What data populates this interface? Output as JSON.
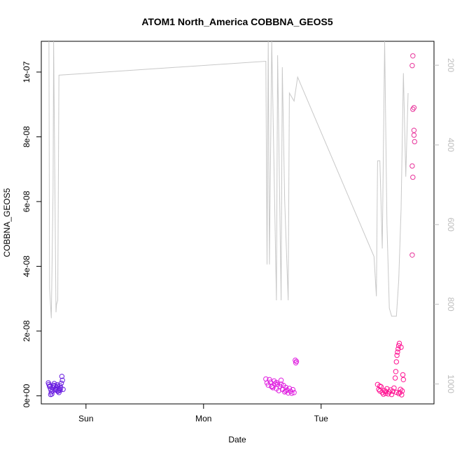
{
  "chart_data": {
    "type": "scatter",
    "title": "ATOM1 North_America COBBNA_GEOS5",
    "xlabel": "Date",
    "ylabel": "COBBNA_GEOS5",
    "x_tick_labels": [
      "Sun",
      "Mon",
      "Tue"
    ],
    "x_tick_values": [
      1,
      2,
      3
    ],
    "xlim": [
      0.62,
      3.96
    ],
    "ylim": [
      -2.5e-09,
      1.095e-07
    ],
    "y_tick_values": [
      0,
      2e-08,
      4e-08,
      6e-08,
      8e-08,
      1e-07
    ],
    "y_tick_labels": [
      "0e+00",
      "2e-08",
      "4e-08",
      "6e-08",
      "8e-08",
      "1e-07"
    ],
    "y2_tick_values": [
      200,
      400,
      600,
      800,
      1000
    ],
    "y2_tick_labels": [
      "200",
      "400",
      "600",
      "800",
      "1000"
    ],
    "y2_reversed": true,
    "y2lim": [
      1050,
      140
    ],
    "grid": false,
    "colors": {
      "group1": "#6a1ee0",
      "group2": "#e020e0",
      "group3": "#ff1493",
      "group3_late": "#e8329a",
      "line": "#c8c8c8",
      "axis": "#000000",
      "right_axis": "#bdbdbd"
    },
    "series": [
      {
        "marker": "open-circle",
        "color": "#6a1ee0",
        "points": [
          [
            0.68,
            4e-09
          ],
          [
            0.685,
            3.5e-09
          ],
          [
            0.69,
            2.8e-09
          ],
          [
            0.695,
            3.1e-09
          ],
          [
            0.7,
            2e-09
          ],
          [
            0.705,
            1.2e-09
          ],
          [
            0.71,
            6e-10
          ],
          [
            0.715,
            1.5e-09
          ],
          [
            0.72,
            2.5e-09
          ],
          [
            0.725,
            3.2e-09
          ],
          [
            0.73,
            3.8e-09
          ],
          [
            0.735,
            3e-09
          ],
          [
            0.74,
            2.2e-09
          ],
          [
            0.745,
            1.8e-09
          ],
          [
            0.75,
            2.6e-09
          ],
          [
            0.755,
            3.4e-09
          ],
          [
            0.76,
            2.9e-09
          ],
          [
            0.765,
            1.6e-09
          ],
          [
            0.77,
            1e-09
          ],
          [
            0.775,
            2.1e-09
          ],
          [
            0.78,
            3.1e-09
          ],
          [
            0.785,
            2.4e-09
          ],
          [
            0.79,
            3.9e-09
          ],
          [
            0.795,
            6e-09
          ],
          [
            0.8,
            4.8e-09
          ],
          [
            0.805,
            2e-09
          ],
          [
            0.7,
            4e-10
          ],
          [
            0.76,
            1.4e-09
          ],
          [
            0.78,
            1.7e-09
          ]
        ]
      },
      {
        "marker": "open-circle",
        "color": "#e020e0",
        "points": [
          [
            2.53,
            5.2e-09
          ],
          [
            2.54,
            4e-09
          ],
          [
            2.55,
            3.3e-09
          ],
          [
            2.56,
            5e-09
          ],
          [
            2.57,
            4.2e-09
          ],
          [
            2.58,
            3e-09
          ],
          [
            2.59,
            2.5e-09
          ],
          [
            2.6,
            4.6e-09
          ],
          [
            2.61,
            3.8e-09
          ],
          [
            2.62,
            2.2e-09
          ],
          [
            2.63,
            3.5e-09
          ],
          [
            2.64,
            1.6e-09
          ],
          [
            2.65,
            2.9e-09
          ],
          [
            2.66,
            4.8e-09
          ],
          [
            2.67,
            2e-09
          ],
          [
            2.68,
            3.2e-09
          ],
          [
            2.69,
            1.2e-09
          ],
          [
            2.7,
            2.6e-09
          ],
          [
            2.71,
            1.8e-09
          ],
          [
            2.72,
            9e-10
          ],
          [
            2.73,
            2.3e-09
          ],
          [
            2.74,
            1.4e-09
          ],
          [
            2.75,
            8e-10
          ],
          [
            2.76,
            1.9e-09
          ],
          [
            2.77,
            1e-09
          ],
          [
            2.78,
            1.1e-08
          ],
          [
            2.785,
            1.02e-08
          ],
          [
            2.79,
            1.06e-08
          ],
          [
            2.58,
            2.8e-09
          ],
          [
            2.62,
            4.1e-09
          ],
          [
            2.66,
            3.6e-09
          ],
          [
            2.7,
            1.5e-09
          ]
        ]
      },
      {
        "marker": "open-circle",
        "color": "#ff1493",
        "points": [
          [
            3.48,
            3.5e-09
          ],
          [
            3.49,
            2e-09
          ],
          [
            3.5,
            1.5e-09
          ],
          [
            3.51,
            2.8e-09
          ],
          [
            3.52,
            1e-09
          ],
          [
            3.53,
            5e-10
          ],
          [
            3.54,
            1.6e-09
          ],
          [
            3.55,
            8e-10
          ],
          [
            3.56,
            2.2e-09
          ],
          [
            3.57,
            6e-10
          ],
          [
            3.58,
            1.2e-09
          ],
          [
            3.59,
            1.8e-09
          ],
          [
            3.6,
            4e-10
          ],
          [
            3.61,
            1.4e-09
          ],
          [
            3.62,
            2.4e-09
          ],
          [
            3.63,
            5.5e-09
          ],
          [
            3.635,
            7.5e-09
          ],
          [
            3.64,
            1.05e-08
          ],
          [
            3.645,
            1.25e-08
          ],
          [
            3.65,
            1.35e-08
          ],
          [
            3.655,
            1.45e-08
          ],
          [
            3.66,
            1.55e-08
          ],
          [
            3.665,
            1.62e-08
          ],
          [
            3.67,
            1e-09
          ],
          [
            3.675,
            2e-09
          ],
          [
            3.68,
            1.5e-08
          ],
          [
            3.685,
            3e-10
          ],
          [
            3.69,
            1.5e-09
          ],
          [
            3.695,
            6.5e-09
          ],
          [
            3.7,
            5e-09
          ],
          [
            3.64,
            1.1e-09
          ],
          [
            3.66,
            7e-10
          ],
          [
            3.5,
            3e-09
          ],
          [
            3.55,
            1.3e-09
          ]
        ]
      },
      {
        "marker": "open-circle",
        "color": "#e8329a",
        "points": [
          [
            3.78,
            1.05e-07
          ],
          [
            3.775,
            1.02e-07
          ],
          [
            3.78,
            8.85e-08
          ],
          [
            3.79,
            8.9e-08
          ],
          [
            3.79,
            8.2e-08
          ],
          [
            3.79,
            8.05e-08
          ],
          [
            3.795,
            7.85e-08
          ],
          [
            3.775,
            7.1e-08
          ],
          [
            3.78,
            6.75e-08
          ],
          [
            3.775,
            4.35e-08
          ]
        ]
      }
    ],
    "line_series": {
      "axis": "y2",
      "color": "#c8c8c8",
      "points": [
        [
          0.685,
          140
        ],
        [
          0.69,
          760
        ],
        [
          0.705,
          835
        ],
        [
          0.72,
          520
        ],
        [
          0.725,
          140
        ],
        [
          0.745,
          820
        ],
        [
          0.75,
          800
        ],
        [
          0.76,
          790
        ],
        [
          0.77,
          225
        ],
        [
          2.53,
          190
        ],
        [
          2.54,
          700
        ],
        [
          2.55,
          140
        ],
        [
          2.56,
          700
        ],
        [
          2.58,
          140
        ],
        [
          2.62,
          790
        ],
        [
          2.63,
          175
        ],
        [
          2.66,
          790
        ],
        [
          2.67,
          205
        ],
        [
          2.69,
          540
        ],
        [
          2.72,
          790
        ],
        [
          2.73,
          270
        ],
        [
          2.77,
          290
        ],
        [
          2.8,
          230
        ],
        [
          3.45,
          680
        ],
        [
          3.47,
          780
        ],
        [
          3.48,
          440
        ],
        [
          3.5,
          440
        ],
        [
          3.52,
          660
        ],
        [
          3.54,
          140
        ],
        [
          3.56,
          600
        ],
        [
          3.58,
          810
        ],
        [
          3.6,
          830
        ],
        [
          3.64,
          830
        ],
        [
          3.66,
          740
        ],
        [
          3.68,
          560
        ],
        [
          3.7,
          220
        ],
        [
          3.72,
          480
        ],
        [
          3.74,
          270
        ]
      ]
    }
  }
}
